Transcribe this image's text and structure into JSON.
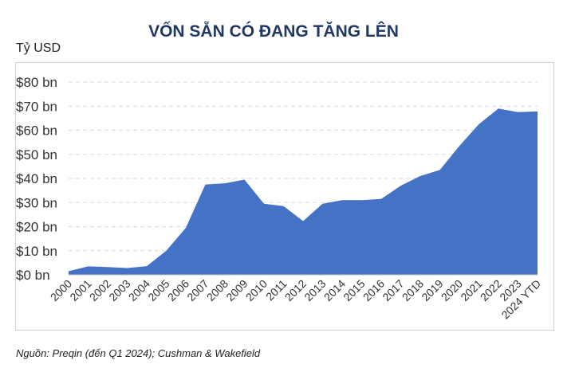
{
  "chart_data": {
    "type": "area",
    "title": "VỐN SẴN CÓ ĐANG TĂNG LÊN",
    "unit_label": "Tỷ USD",
    "source": "Nguồn: Preqin (đến Q1 2024); Cushman & Wakefield",
    "x": [
      "2000",
      "2001",
      "2002",
      "2003",
      "2004",
      "2005",
      "2006",
      "2007",
      "2008",
      "2009",
      "2010",
      "2011",
      "2012",
      "2013",
      "2014",
      "2015",
      "2016",
      "2017",
      "2018",
      "2019",
      "2020",
      "2021",
      "2022",
      "2023",
      "2024 YTD"
    ],
    "values": [
      1.5,
      3.5,
      3.2,
      2.8,
      3.6,
      10,
      19.5,
      37.5,
      38,
      39.5,
      29.5,
      28.5,
      22.3,
      29.5,
      31,
      31,
      31.5,
      37,
      41,
      43.5,
      53.5,
      62.5,
      69,
      67.5,
      67.8
    ],
    "y_ticks": [
      "$0 bn",
      "$10 bn",
      "$20 bn",
      "$30 bn",
      "$40 bn",
      "$50 bn",
      "$60 bn",
      "$70 bn",
      "$80 bn"
    ],
    "ylim": [
      0,
      80
    ],
    "grid": true,
    "colors": {
      "area": "#4472c4",
      "grid": "#d9d9d9",
      "title": "#203864"
    }
  }
}
